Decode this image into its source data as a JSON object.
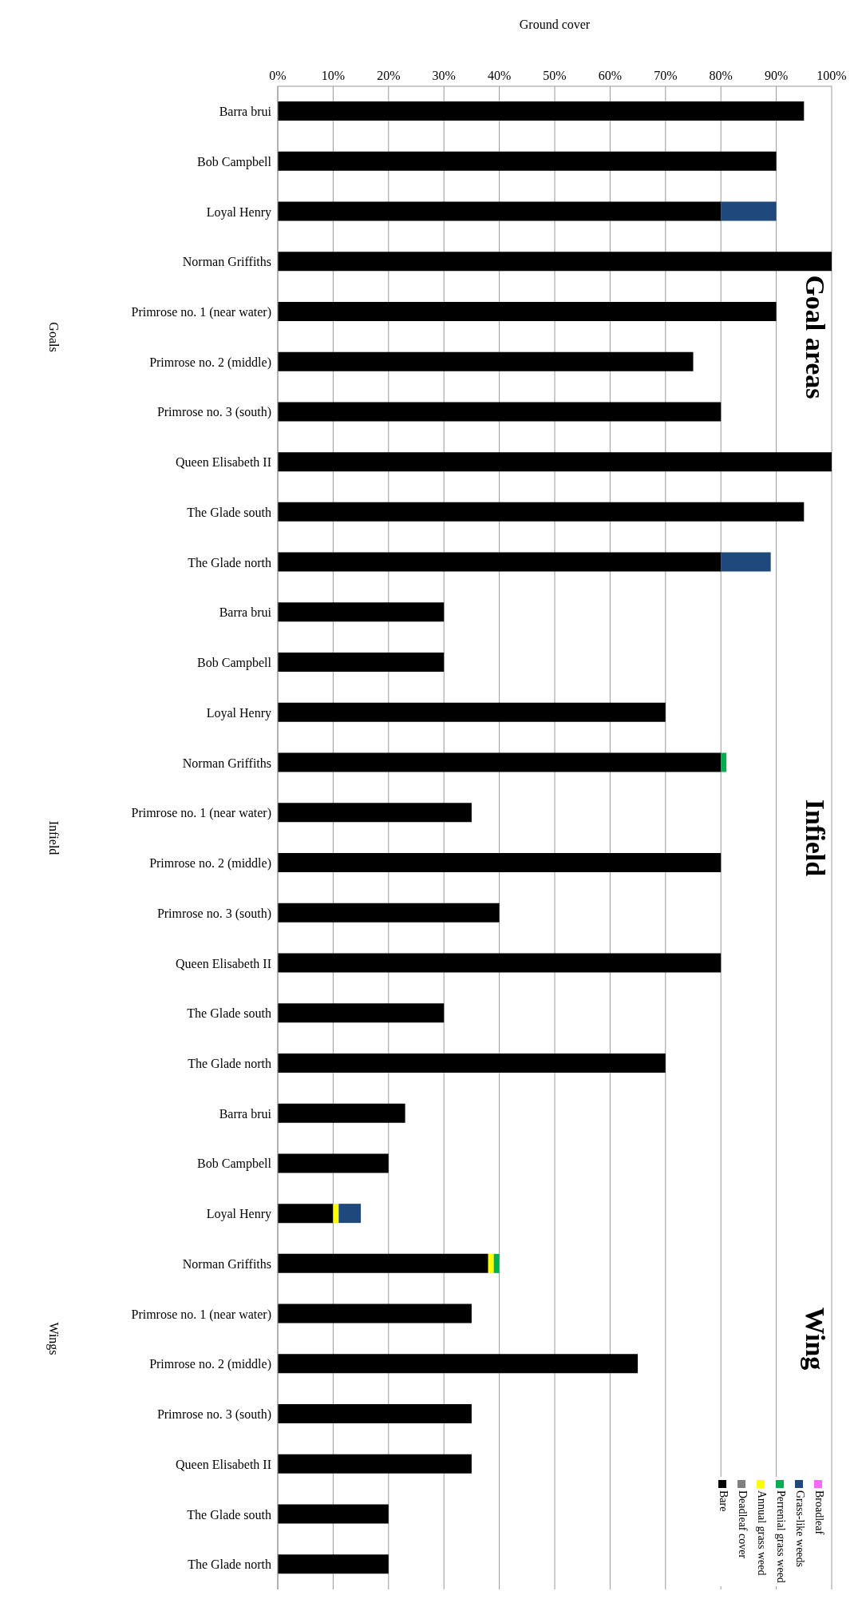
{
  "chart_data": {
    "type": "bar",
    "orientation": "horizontal",
    "stacked": true,
    "xlabel": "Ground cover",
    "categories": [
      "Barra brui",
      "Bob Campbell",
      "Loyal Henry",
      "Norman Griffiths",
      "Primrose no. 1 (near water)",
      "Primrose no. 2 (middle)",
      "Primrose no. 3 (south)",
      "Queen Elisabeth II",
      "The Glade south",
      "The Glade north",
      "Barra brui",
      "Bob Campbell",
      "Loyal Henry",
      "Norman Griffiths",
      "Primrose no. 1 (near water)",
      "Primrose no. 2 (middle)",
      "Primrose no. 3 (south)",
      "Queen Elisabeth II",
      "The Glade south",
      "The Glade north",
      "Barra brui",
      "Bob Campbell",
      "Loyal Henry",
      "Norman Griffiths",
      "Primrose no. 1 (near water)",
      "Primrose no. 2 (middle)",
      "Primrose no. 3 (south)",
      "Queen Elisabeth II",
      "The Glade south",
      "The Glade north"
    ],
    "series": [
      {
        "name": "Bare",
        "color": "#000000",
        "values": [
          95,
          90,
          80,
          100,
          90,
          75,
          80,
          100,
          95,
          80,
          30,
          30,
          70,
          80,
          35,
          80,
          40,
          80,
          30,
          70,
          23,
          20,
          10,
          38,
          35,
          65,
          35,
          35,
          20,
          20
        ]
      },
      {
        "name": "Deadleaf cover",
        "color": "#808080",
        "values": [
          0,
          0,
          0,
          0,
          0,
          0,
          0,
          0,
          0,
          0,
          0,
          0,
          0,
          0,
          0,
          0,
          0,
          0,
          0,
          0,
          0,
          0,
          0,
          0,
          0,
          0,
          0,
          0,
          0,
          0
        ]
      },
      {
        "name": "Annual grass weed",
        "color": "#ffff00",
        "values": [
          0,
          0,
          0,
          0,
          0,
          0,
          0,
          0,
          0,
          0,
          0,
          0,
          0,
          0,
          0,
          0,
          0,
          0,
          0,
          0,
          0,
          0,
          1,
          1,
          0,
          0,
          0,
          0,
          0,
          0
        ]
      },
      {
        "name": "Perrenial grass weed",
        "color": "#00b050",
        "values": [
          0,
          0,
          0,
          0,
          0,
          0,
          0,
          0,
          0,
          0,
          0,
          0,
          0,
          1,
          0,
          0,
          0,
          0,
          0,
          0,
          0,
          0,
          0,
          1,
          0,
          0,
          0,
          0,
          0,
          0
        ]
      },
      {
        "name": "Grass-like weeds",
        "color": "#1f497d",
        "values": [
          0,
          0,
          10,
          0,
          0,
          0,
          0,
          0,
          0,
          9,
          0,
          0,
          0,
          0,
          0,
          0,
          0,
          0,
          0,
          0,
          0,
          0,
          4,
          0,
          0,
          0,
          0,
          0,
          0,
          0
        ]
      },
      {
        "name": "Broadleaf",
        "color": "#ff66ff",
        "values": [
          0,
          0,
          0,
          0,
          0,
          0,
          0,
          0,
          0,
          0,
          0,
          0,
          0,
          0,
          0,
          0,
          0,
          0,
          0,
          0,
          0,
          0,
          0,
          0,
          0,
          0,
          0,
          0,
          0,
          0
        ]
      }
    ],
    "xlim": [
      0,
      100
    ],
    "xticks": [
      {
        "value": 0,
        "label": "0%"
      },
      {
        "value": 10,
        "label": "10%"
      },
      {
        "value": 20,
        "label": "20%"
      },
      {
        "value": 30,
        "label": "30%"
      },
      {
        "value": 40,
        "label": "40%"
      },
      {
        "value": 50,
        "label": "50%"
      },
      {
        "value": 60,
        "label": "60%"
      },
      {
        "value": 70,
        "label": "70%"
      },
      {
        "value": 80,
        "label": "80%"
      },
      {
        "value": 90,
        "label": "90%"
      },
      {
        "value": 100,
        "label": "100%"
      }
    ],
    "grid": "x",
    "legend": "bottom right",
    "annotations": [
      "Goal areas",
      "Infield",
      "Wing",
      "Goals",
      "Infield",
      "Wings"
    ]
  }
}
